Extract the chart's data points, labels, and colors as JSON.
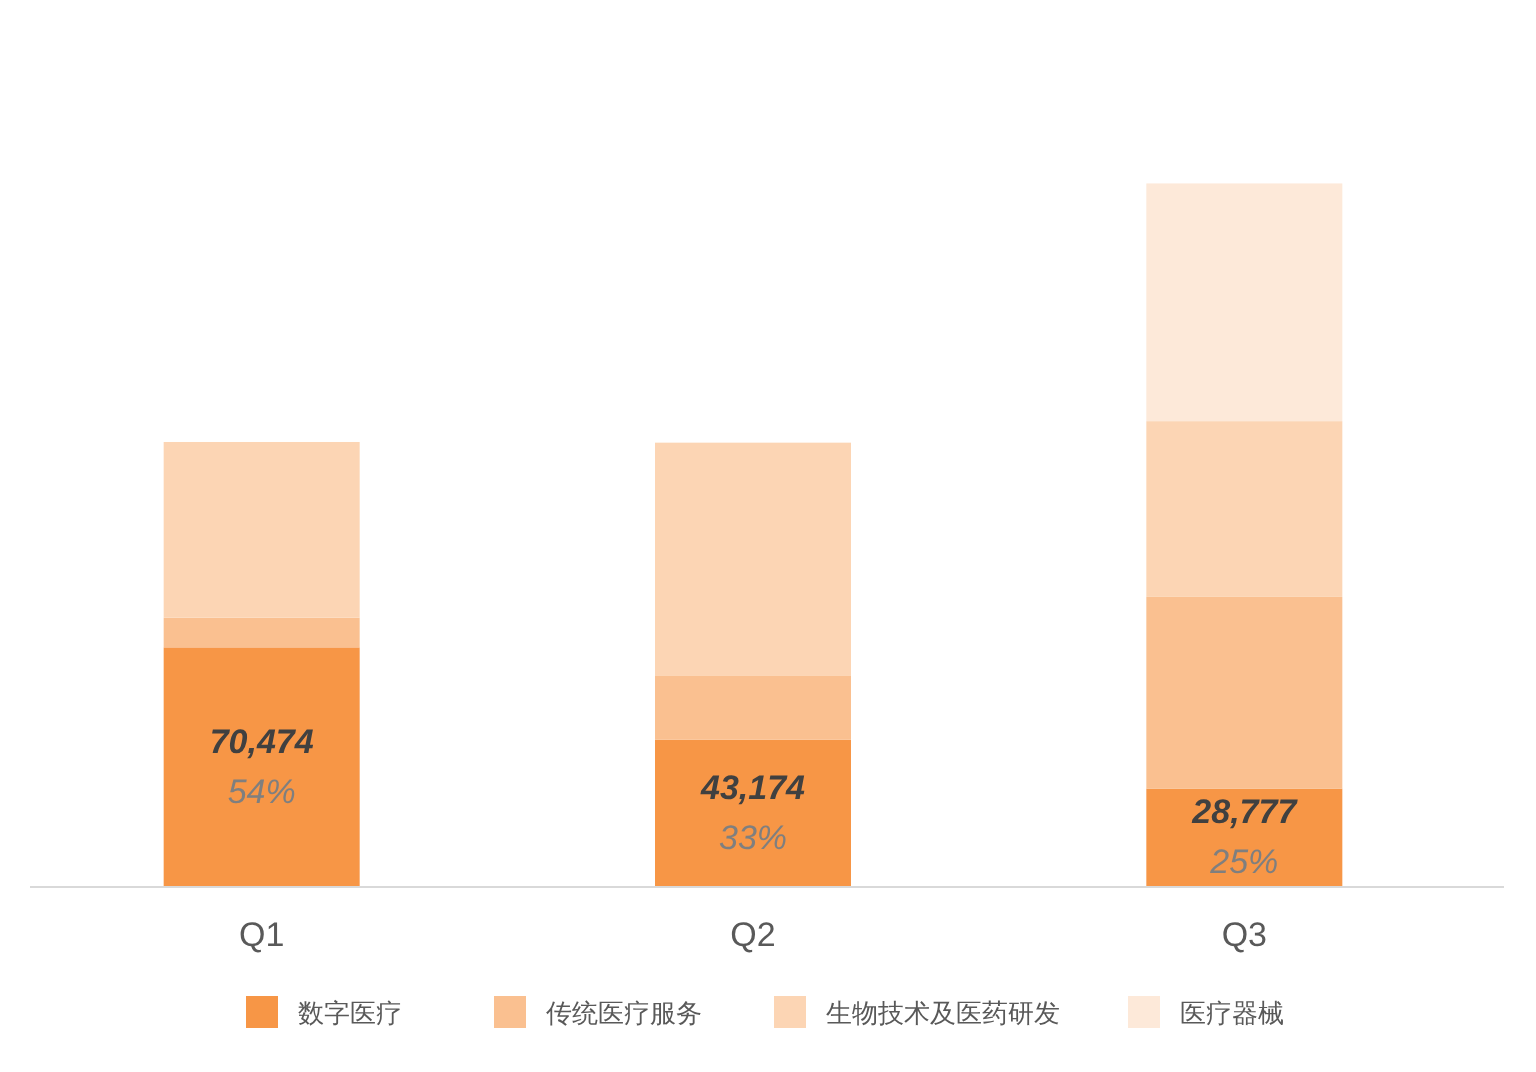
{
  "chart_data": {
    "type": "bar",
    "stacked": true,
    "categories": [
      "Q1",
      "Q2",
      "Q3"
    ],
    "series": [
      {
        "name": "数字医疗",
        "color": "#f79646",
        "values": [
          70474,
          43174,
          28777
        ],
        "value_labels": [
          "70,474",
          "43,174",
          "28,777"
        ]
      },
      {
        "name": "传统医疗服务",
        "color": "#fac090",
        "values": [
          8750,
          18850,
          56600
        ]
      },
      {
        "name": "生物技术及医药研发",
        "color": "#fcd5b4",
        "values": [
          51900,
          68900,
          51900
        ]
      },
      {
        "name": "医疗器械",
        "color": "#fde9d9",
        "values": [
          0,
          0,
          70200
        ]
      }
    ],
    "annotations": [
      "54%",
      "33%",
      "25%"
    ],
    "legend": "bottom"
  }
}
